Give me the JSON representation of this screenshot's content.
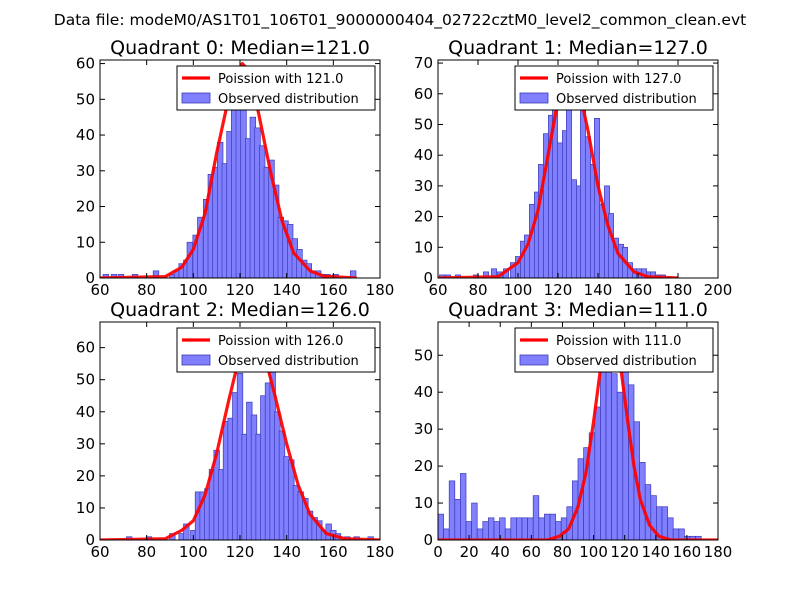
{
  "figure_title": "Data file: modeM0/AS1T01_106T01_9000000404_02722cztM0_level2_common_clean.evt",
  "colors": {
    "bar_fill": "#8080ff",
    "bar_edge": "#3a3ab8",
    "poisson_line": "#ff0000",
    "axes": "#000000",
    "background": "#ffffff"
  },
  "chart_data": [
    {
      "type": "bar",
      "title": "Quadrant 0: Median=121.0",
      "median": 121.0,
      "xlim": [
        60,
        180
      ],
      "ylim": [
        0,
        61
      ],
      "xticks": [
        60,
        80,
        100,
        120,
        140,
        160,
        180
      ],
      "yticks": [
        0,
        10,
        20,
        30,
        40,
        50,
        60
      ],
      "legend": [
        "Poission with 121.0",
        "Observed distribution"
      ],
      "legend_position": "top-right",
      "bin_width": 2.4,
      "bins": [
        [
          62.5,
          1
        ],
        [
          66,
          1
        ],
        [
          69,
          1
        ],
        [
          75,
          1
        ],
        [
          84,
          2
        ],
        [
          91,
          1
        ],
        [
          93,
          2
        ],
        [
          95,
          4
        ],
        [
          97,
          5
        ],
        [
          98.5,
          10
        ],
        [
          101,
          12
        ],
        [
          103,
          17
        ],
        [
          105.5,
          22
        ],
        [
          107.5,
          29
        ],
        [
          109.5,
          31
        ],
        [
          111.5,
          38
        ],
        [
          113.5,
          32
        ],
        [
          115.5,
          41
        ],
        [
          117.5,
          58
        ],
        [
          119.5,
          53
        ],
        [
          121.5,
          50
        ],
        [
          123.5,
          39
        ],
        [
          125.5,
          45
        ],
        [
          127.5,
          42
        ],
        [
          129.5,
          37
        ],
        [
          131.5,
          31
        ],
        [
          133.5,
          33
        ],
        [
          135.5,
          26
        ],
        [
          137.5,
          17
        ],
        [
          139.5,
          16
        ],
        [
          141.5,
          15
        ],
        [
          143.5,
          11
        ],
        [
          145.5,
          8
        ],
        [
          147.5,
          5
        ],
        [
          149.5,
          4
        ],
        [
          151.5,
          2
        ],
        [
          153.5,
          2
        ],
        [
          155.5,
          1
        ],
        [
          157.5,
          1
        ],
        [
          161,
          1
        ],
        [
          168.5,
          2
        ]
      ],
      "poisson": {
        "mean": 121.0,
        "x": [
          60,
          88,
          95,
          100,
          105,
          110,
          115,
          119,
          121,
          124,
          128,
          133,
          138,
          143,
          150,
          156,
          170
        ],
        "y": [
          0,
          0.4,
          3,
          8,
          18,
          35,
          50,
          58,
          60,
          58,
          46,
          30,
          16,
          7,
          2,
          0.5,
          0
        ]
      }
    },
    {
      "type": "bar",
      "title": "Quadrant 1: Median=127.0",
      "median": 127.0,
      "xlim": [
        60,
        200
      ],
      "ylim": [
        0,
        71
      ],
      "xticks": [
        60,
        80,
        100,
        120,
        140,
        160,
        180,
        200
      ],
      "yticks": [
        0,
        10,
        20,
        30,
        40,
        50,
        60,
        70
      ],
      "legend": [
        "Poission with 127.0",
        "Observed distribution"
      ],
      "legend_position": "top-right",
      "bin_width": 2.6,
      "bins": [
        [
          62,
          1
        ],
        [
          65,
          1
        ],
        [
          70,
          1
        ],
        [
          79,
          1
        ],
        [
          84,
          2
        ],
        [
          88,
          3
        ],
        [
          91,
          2
        ],
        [
          94,
          3
        ],
        [
          97.5,
          5
        ],
        [
          100,
          7
        ],
        [
          102.5,
          12
        ],
        [
          104.5,
          14
        ],
        [
          107,
          24
        ],
        [
          109.5,
          28
        ],
        [
          111.5,
          37
        ],
        [
          114,
          47
        ],
        [
          116.5,
          53
        ],
        [
          118.5,
          57
        ],
        [
          121,
          44
        ],
        [
          123.5,
          48
        ],
        [
          125.5,
          60
        ],
        [
          128,
          32
        ],
        [
          130.5,
          30
        ],
        [
          132.5,
          58
        ],
        [
          135,
          46
        ],
        [
          137.5,
          37
        ],
        [
          139.5,
          52
        ],
        [
          142,
          24
        ],
        [
          144.5,
          30
        ],
        [
          146.5,
          21
        ],
        [
          149,
          13
        ],
        [
          151.5,
          11
        ],
        [
          153.5,
          10
        ],
        [
          156,
          5
        ],
        [
          158.5,
          3
        ],
        [
          160.5,
          3
        ],
        [
          163,
          3
        ],
        [
          165.5,
          2
        ],
        [
          167.5,
          2
        ],
        [
          170,
          1
        ],
        [
          172.5,
          1
        ]
      ],
      "poisson": {
        "mean": 127.0,
        "x": [
          60,
          90,
          100,
          105,
          110,
          115,
          120,
          124,
          127,
          130,
          135,
          140,
          145,
          150,
          158,
          165,
          180
        ],
        "y": [
          0,
          0.4,
          5,
          11,
          22,
          40,
          58,
          66,
          68,
          63,
          48,
          30,
          17,
          8,
          2,
          0.4,
          0
        ]
      }
    },
    {
      "type": "bar",
      "title": "Quadrant 2: Median=126.0",
      "median": 126.0,
      "xlim": [
        60,
        180
      ],
      "ylim": [
        0,
        68
      ],
      "xticks": [
        60,
        80,
        100,
        120,
        140,
        160,
        180
      ],
      "yticks": [
        0,
        10,
        20,
        30,
        40,
        50,
        60
      ],
      "legend": [
        "Poission with 126.0",
        "Observed distribution"
      ],
      "legend_position": "top-right",
      "bin_width": 2.4,
      "bins": [
        [
          72.5,
          1
        ],
        [
          81,
          1
        ],
        [
          91,
          2
        ],
        [
          95,
          2
        ],
        [
          97,
          5
        ],
        [
          100,
          3
        ],
        [
          102,
          15
        ],
        [
          104,
          15
        ],
        [
          106,
          16
        ],
        [
          108,
          22
        ],
        [
          110,
          28
        ],
        [
          112,
          22
        ],
        [
          114,
          37
        ],
        [
          116,
          38
        ],
        [
          118,
          46
        ],
        [
          120,
          52
        ],
        [
          122,
          33
        ],
        [
          124,
          43
        ],
        [
          126,
          39
        ],
        [
          128,
          33
        ],
        [
          130,
          45
        ],
        [
          132,
          49
        ],
        [
          134,
          65
        ],
        [
          136,
          40
        ],
        [
          138,
          34
        ],
        [
          140,
          26
        ],
        [
          142,
          25
        ],
        [
          144,
          17
        ],
        [
          146,
          15
        ],
        [
          148,
          13
        ],
        [
          150,
          9
        ],
        [
          152,
          7
        ],
        [
          154,
          6
        ],
        [
          156,
          3
        ],
        [
          158,
          5
        ],
        [
          160,
          3
        ],
        [
          162,
          2
        ],
        [
          166,
          1
        ],
        [
          170,
          1
        ],
        [
          176,
          1
        ]
      ],
      "poisson": {
        "mean": 126.0,
        "x": [
          60,
          88,
          95,
          100,
          105,
          110,
          115,
          120,
          124,
          126,
          129,
          135,
          140,
          145,
          150,
          157,
          165,
          180
        ],
        "y": [
          0,
          0.4,
          3,
          6,
          14,
          27,
          43,
          58,
          64,
          65,
          62,
          45,
          30,
          17,
          8,
          2,
          0.4,
          0
        ]
      }
    },
    {
      "type": "bar",
      "title": "Quadrant 3: Median=111.0",
      "median": 111.0,
      "xlim": [
        0,
        180
      ],
      "ylim": [
        0,
        59
      ],
      "xticks": [
        0,
        20,
        40,
        60,
        80,
        100,
        120,
        140,
        160,
        180
      ],
      "yticks": [
        0,
        10,
        20,
        30,
        40,
        50
      ],
      "legend": [
        "Poission with 111.0",
        "Observed distribution"
      ],
      "legend_position": "top-right",
      "bin_width": 3.6,
      "bins": [
        [
          1.8,
          7
        ],
        [
          5.4,
          3
        ],
        [
          9,
          16
        ],
        [
          12.6,
          11
        ],
        [
          16.2,
          18
        ],
        [
          19.8,
          5
        ],
        [
          23.4,
          10
        ],
        [
          27,
          3
        ],
        [
          30.6,
          5
        ],
        [
          34.2,
          6
        ],
        [
          37.8,
          5
        ],
        [
          41.4,
          6
        ],
        [
          45,
          3
        ],
        [
          48.6,
          6
        ],
        [
          52.2,
          6
        ],
        [
          55.8,
          6
        ],
        [
          59.4,
          6
        ],
        [
          63,
          12
        ],
        [
          66.6,
          6
        ],
        [
          70.2,
          7
        ],
        [
          73.8,
          7
        ],
        [
          77.4,
          5
        ],
        [
          81,
          6
        ],
        [
          84.6,
          9
        ],
        [
          88.2,
          16
        ],
        [
          91.8,
          22
        ],
        [
          95.4,
          25
        ],
        [
          99,
          29
        ],
        [
          102.6,
          36
        ],
        [
          106.2,
          53
        ],
        [
          109.8,
          49
        ],
        [
          113.4,
          45
        ],
        [
          117,
          40
        ],
        [
          120.6,
          48
        ],
        [
          124.2,
          42
        ],
        [
          127.8,
          32
        ],
        [
          131.4,
          21
        ],
        [
          135,
          15
        ],
        [
          138.6,
          12
        ],
        [
          142.2,
          9
        ],
        [
          145.8,
          9
        ],
        [
          149.4,
          6
        ],
        [
          153,
          3
        ],
        [
          156.6,
          3
        ],
        [
          160.2,
          1
        ],
        [
          163.8,
          1
        ],
        [
          167.4,
          1
        ]
      ],
      "poisson": {
        "mean": 111.0,
        "x": [
          0,
          70,
          78,
          84,
          90,
          95,
          100,
          105,
          109,
          111,
          114,
          118,
          122,
          126,
          130,
          136,
          142,
          150,
          180
        ],
        "y": [
          0,
          0,
          1,
          3,
          9,
          18,
          32,
          48,
          56,
          57,
          54,
          45,
          32,
          20,
          11,
          4,
          1,
          0,
          0
        ]
      }
    }
  ]
}
